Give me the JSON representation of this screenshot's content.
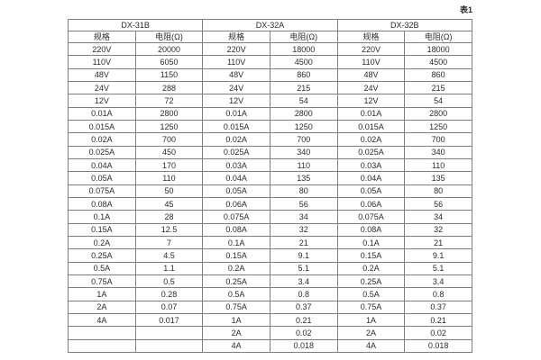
{
  "table": {
    "caption": "表1",
    "groups": [
      {
        "name": "DX-31B"
      },
      {
        "name": "DX-32A"
      },
      {
        "name": "DX-32B"
      }
    ],
    "subheaders": [
      "规格",
      "电阻(Ω)"
    ],
    "rows": [
      [
        "220V",
        "20000",
        "220V",
        "18000",
        "220V",
        "18000"
      ],
      [
        "110V",
        "6050",
        "110V",
        "4500",
        "110V",
        "4500"
      ],
      [
        "48V",
        "1150",
        "48V",
        "860",
        "48V",
        "860"
      ],
      [
        "24V",
        "288",
        "24V",
        "215",
        "24V",
        "215"
      ],
      [
        "12V",
        "72",
        "12V",
        "54",
        "12V",
        "54"
      ],
      [
        "0.01A",
        "2800",
        "0.01A",
        "2800",
        "0.01A",
        "2800"
      ],
      [
        "0.015A",
        "1250",
        "0.015A",
        "1250",
        "0.015A",
        "1250"
      ],
      [
        "0.02A",
        "700",
        "0.02A",
        "700",
        "0.02A",
        "700"
      ],
      [
        "0.025A",
        "450",
        "0.025A",
        "340",
        "0.025A",
        "340"
      ],
      [
        "0.04A",
        "170",
        "0.03A",
        "110",
        "0.03A",
        "110"
      ],
      [
        "0.05A",
        "110",
        "0.04A",
        "135",
        "0.04A",
        "135"
      ],
      [
        "0.075A",
        "50",
        "0.05A",
        "80",
        "0.05A",
        "80"
      ],
      [
        "0.08A",
        "45",
        "0.06A",
        "56",
        "0.06A",
        "56"
      ],
      [
        "0.1A",
        "28",
        "0.075A",
        "34",
        "0.075A",
        "34"
      ],
      [
        "0.15A",
        "12.5",
        "0.08A",
        "32",
        "0.08A",
        "32"
      ],
      [
        "0.2A",
        "7",
        "0.1A",
        "21",
        "0.1A",
        "21"
      ],
      [
        "0.25A",
        "4.5",
        "0.15A",
        "9.1",
        "0.15A",
        "9.1"
      ],
      [
        "0.5A",
        "1.1",
        "0.2A",
        "5.1",
        "0.2A",
        "5.1"
      ],
      [
        "0.75A",
        "0.5",
        "0.25A",
        "3.4",
        "0.25A",
        "3.4"
      ],
      [
        "1A",
        "0.28",
        "0.5A",
        "0.8",
        "0.5A",
        "0.8"
      ],
      [
        "2A",
        "0.07",
        "0.75A",
        "0.37",
        "0.75A",
        "0.37"
      ],
      [
        "4A",
        "0.017",
        "1A",
        "0.21",
        "1A",
        "0.21"
      ],
      [
        "",
        "",
        "2A",
        "0.02",
        "2A",
        "0.02"
      ],
      [
        "",
        "",
        "4A",
        "0.018",
        "4A",
        "0.018"
      ]
    ]
  }
}
